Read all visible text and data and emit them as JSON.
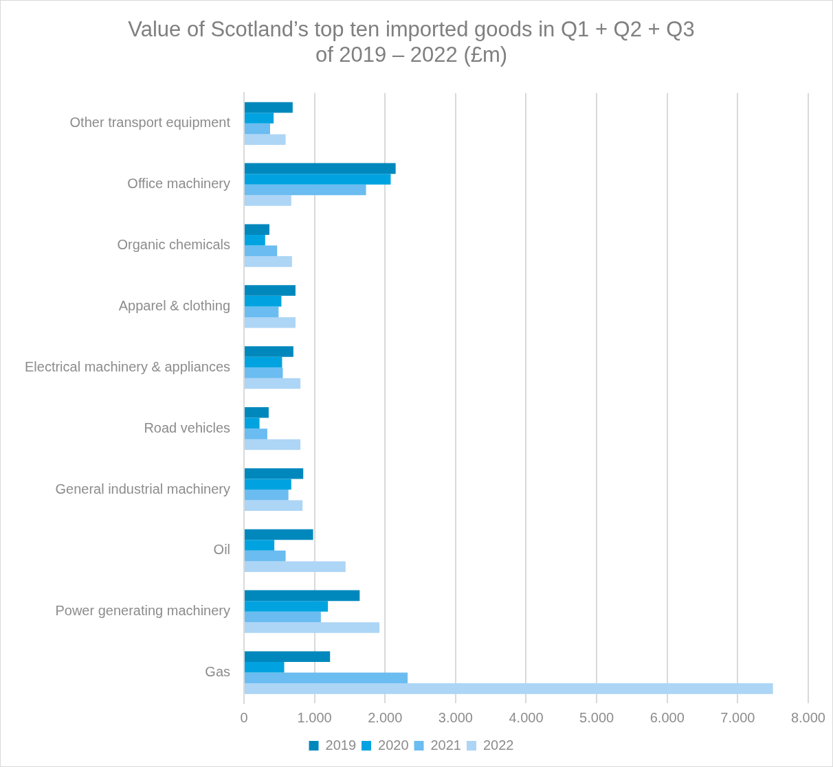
{
  "chart_data": {
    "type": "bar",
    "orientation": "horizontal",
    "title": "Value of Scotland’s top ten imported goods in Q1 + Q2 + Q3\nof 2019 – 2022 (£m)",
    "categories": [
      "Other transport equipment",
      "Office machinery",
      "Organic chemicals",
      "Apparel & clothing",
      "Electrical machinery & appliances",
      "Road vehicles",
      "General industrial machinery",
      "Oil",
      "Power generating machinery",
      "Gas"
    ],
    "series": [
      {
        "name": "2019",
        "color": "#0088bd",
        "values": [
          690,
          2150,
          360,
          730,
          700,
          350,
          840,
          980,
          1640,
          1220
        ]
      },
      {
        "name": "2020",
        "color": "#00a3e0",
        "values": [
          420,
          2080,
          300,
          530,
          540,
          220,
          670,
          430,
          1190,
          570
        ]
      },
      {
        "name": "2021",
        "color": "#6bbcf0",
        "values": [
          370,
          1730,
          470,
          490,
          550,
          330,
          630,
          590,
          1090,
          2320
        ]
      },
      {
        "name": "2022",
        "color": "#add5f5",
        "values": [
          590,
          670,
          680,
          730,
          800,
          800,
          830,
          1440,
          1920,
          7500
        ]
      }
    ],
    "xlim": [
      0,
      8000
    ],
    "xticks": [
      0,
      {
        "value": 1000,
        "label": "1.000"
      },
      {
        "value": 2000,
        "label": "2.000"
      },
      {
        "value": 3000,
        "label": "3.000"
      },
      {
        "value": 4000,
        "label": "4.000"
      },
      {
        "value": 5000,
        "label": "5.000"
      },
      {
        "value": 6000,
        "label": "6.000"
      },
      {
        "value": 7000,
        "label": "7.000"
      },
      {
        "value": 8000,
        "label": "8.000"
      }
    ],
    "grid": "x",
    "legend": "bottom"
  }
}
